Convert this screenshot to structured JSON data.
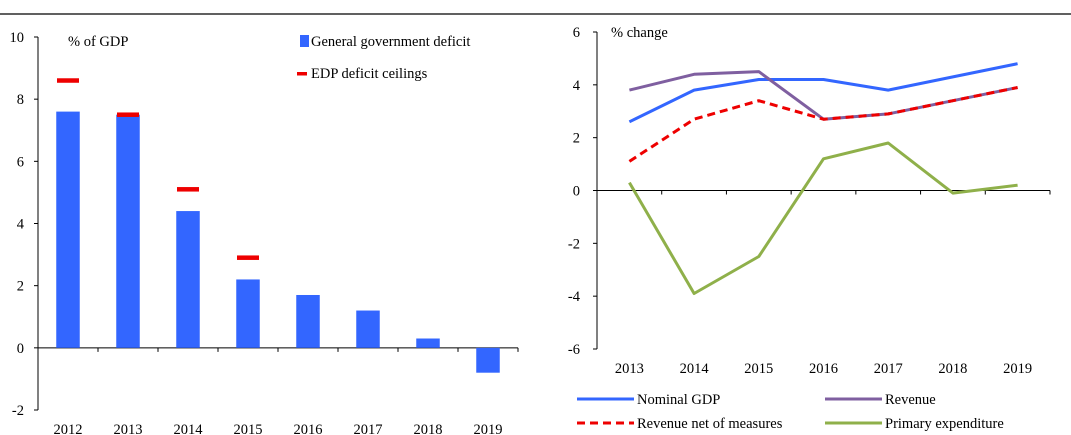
{
  "chart_data": [
    {
      "type": "bar",
      "ylabel": "% of GDP",
      "ylim": [
        -2,
        10
      ],
      "yticks": [
        -2,
        0,
        2,
        4,
        6,
        8,
        10
      ],
      "categories": [
        "2012",
        "2013",
        "2014",
        "2015",
        "2016",
        "2017",
        "2018",
        "2019"
      ],
      "series": [
        {
          "name": "General government deficit",
          "kind": "bar",
          "color": "#3366ff",
          "values": [
            7.6,
            7.5,
            4.4,
            2.2,
            1.7,
            1.2,
            0.3,
            -0.8
          ]
        },
        {
          "name": "EDP deficit ceilings",
          "kind": "marker",
          "color": "#ee0000",
          "values": [
            8.6,
            7.5,
            5.1,
            2.9,
            null,
            null,
            null,
            null
          ]
        }
      ],
      "legend_position": "top-right",
      "grid": false
    },
    {
      "type": "line",
      "ylabel": "% change",
      "ylim": [
        -6,
        6
      ],
      "yticks": [
        -6,
        -4,
        -2,
        0,
        2,
        4,
        6
      ],
      "categories": [
        "2013",
        "2014",
        "2015",
        "2016",
        "2017",
        "2018",
        "2019"
      ],
      "series": [
        {
          "name": "Nominal GDP",
          "color": "#3366ff",
          "dash": false,
          "values": [
            2.6,
            3.8,
            4.2,
            4.2,
            3.8,
            4.3,
            4.8
          ]
        },
        {
          "name": "Revenue",
          "color": "#7f5fa0",
          "dash": false,
          "values": [
            3.8,
            4.4,
            4.5,
            2.7,
            2.9,
            3.4,
            3.9
          ]
        },
        {
          "name": "Revenue net of measures",
          "color": "#ee0000",
          "dash": true,
          "values": [
            1.1,
            2.7,
            3.4,
            2.7,
            2.9,
            3.4,
            3.9
          ]
        },
        {
          "name": "Primary expenditure",
          "color": "#8fb04a",
          "dash": false,
          "values": [
            0.3,
            -3.9,
            -2.5,
            1.2,
            1.8,
            -0.1,
            0.2
          ]
        }
      ],
      "legend_position": "bottom",
      "grid": false
    }
  ]
}
